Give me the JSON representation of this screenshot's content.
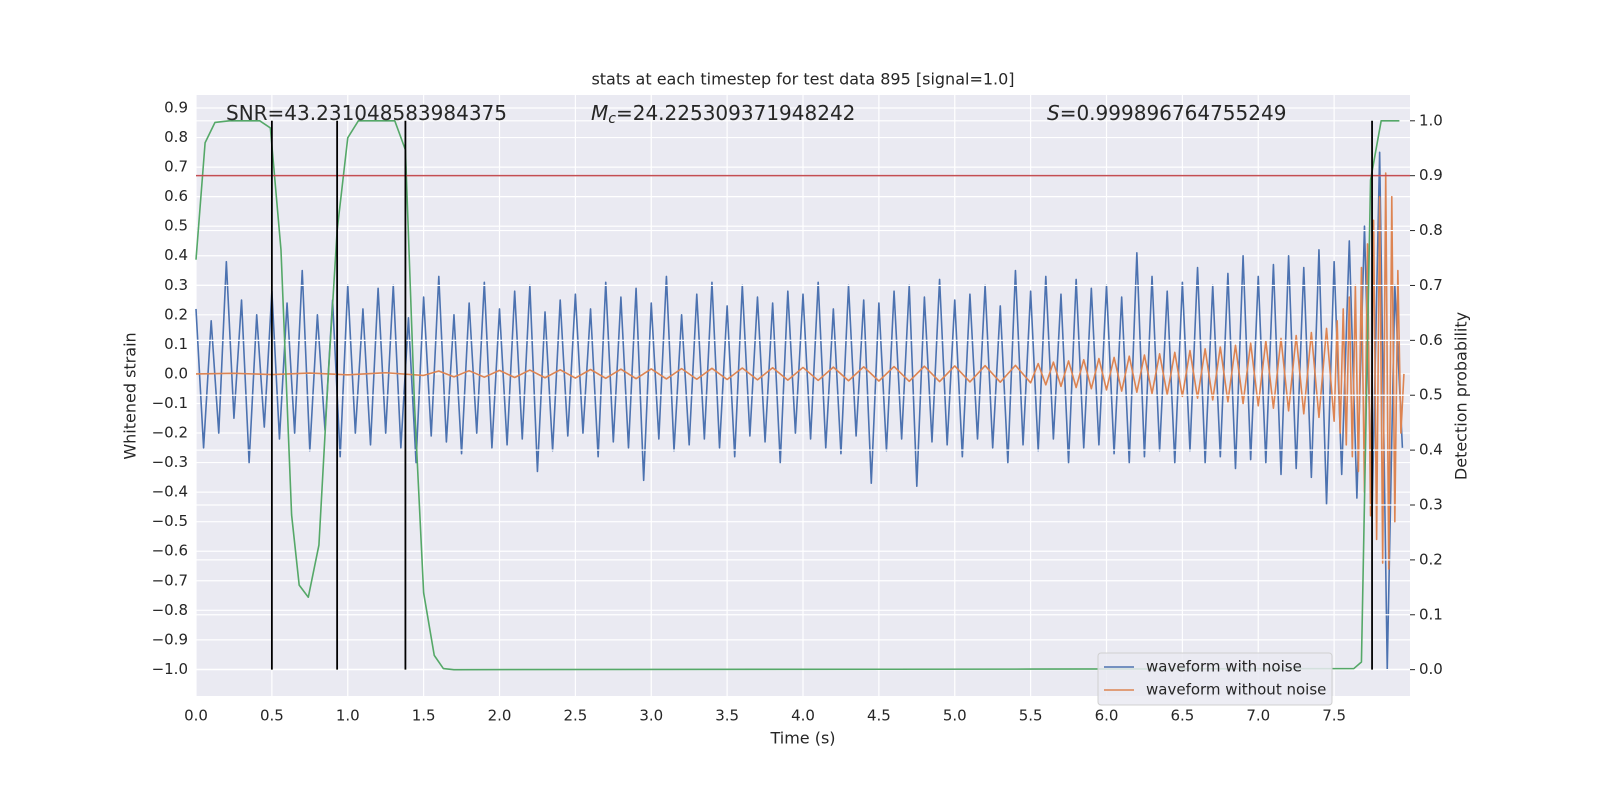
{
  "chart_data": {
    "type": "line",
    "title": "stats at each timestep for test data 895 [signal=1.0]",
    "xlabel": "Time (s)",
    "ylabel": "Whitened strain",
    "y2label": "Detection probability",
    "grid": true,
    "legend": "lower right",
    "xlim": [
      0,
      8.0
    ],
    "ylim": [
      -1.09,
      0.944
    ],
    "y2lim": [
      -0.048,
      1.047
    ],
    "xticks": [
      {
        "value": 0,
        "label": "0.0"
      },
      0.5,
      {
        "value": 1,
        "label": "1.0"
      },
      1.5,
      {
        "value": 2,
        "label": "2.0"
      },
      2.5,
      {
        "value": 3,
        "label": "3.0"
      },
      3.5,
      {
        "value": 4,
        "label": "4.0"
      },
      4.5,
      {
        "value": 5,
        "label": "5.0"
      },
      5.5,
      {
        "value": 6,
        "label": "6.0"
      },
      6.5,
      {
        "value": 7,
        "label": "7.0"
      },
      7.5
    ],
    "yticks": [
      {
        "value": -1,
        "label": "−1.0"
      },
      {
        "value": -0.9,
        "label": "−0.9"
      },
      {
        "value": -0.8,
        "label": "−0.8"
      },
      {
        "value": -0.7,
        "label": "−0.7"
      },
      {
        "value": -0.6,
        "label": "−0.6"
      },
      {
        "value": -0.5,
        "label": "−0.5"
      },
      {
        "value": -0.4,
        "label": "−0.4"
      },
      {
        "value": -0.3,
        "label": "−0.3"
      },
      {
        "value": -0.2,
        "label": "−0.2"
      },
      {
        "value": -0.1,
        "label": "−0.1"
      },
      {
        "value": 0,
        "label": "0.0"
      },
      0.1,
      0.2,
      0.3,
      0.4,
      0.5,
      0.6,
      0.7,
      0.8,
      0.9
    ],
    "y2ticks": [
      {
        "value": 0,
        "label": "0.0"
      },
      0.1,
      0.2,
      0.3,
      0.4,
      0.5,
      0.6,
      0.7,
      0.8,
      0.9,
      {
        "value": 1,
        "label": "1.0"
      }
    ],
    "annotations": [
      {
        "text": "SNR=43.231048583984375"
      },
      {
        "symbol": "M",
        "subscript": "c",
        "text": "=24.225309371948242"
      },
      {
        "symbol": "S",
        "text": "=0.999896764755249"
      }
    ],
    "series": [
      {
        "name": "waveform with noise",
        "color": "#4c72b0",
        "x": [
          0,
          0.05,
          0.1,
          0.15,
          0.2,
          0.25,
          0.3,
          0.35,
          0.4,
          0.45,
          0.5,
          0.55,
          0.6,
          0.65,
          0.7,
          0.75,
          0.8,
          0.85,
          0.9,
          0.95,
          1.0,
          1.05,
          1.1,
          1.15,
          1.2,
          1.25,
          1.3,
          1.35,
          1.4,
          1.45,
          1.5,
          1.55,
          1.6,
          1.65,
          1.7,
          1.75,
          1.8,
          1.85,
          1.9,
          1.95,
          2.0,
          2.05,
          2.1,
          2.15,
          2.2,
          2.25,
          2.3,
          2.35,
          2.4,
          2.45,
          2.5,
          2.55,
          2.6,
          2.65,
          2.7,
          2.75,
          2.8,
          2.85,
          2.9,
          2.95,
          3.0,
          3.05,
          3.1,
          3.15,
          3.2,
          3.25,
          3.3,
          3.35,
          3.4,
          3.45,
          3.5,
          3.55,
          3.6,
          3.65,
          3.7,
          3.75,
          3.8,
          3.85,
          3.9,
          3.95,
          4.0,
          4.05,
          4.1,
          4.15,
          4.2,
          4.25,
          4.3,
          4.35,
          4.4,
          4.45,
          4.5,
          4.55,
          4.6,
          4.65,
          4.7,
          4.75,
          4.8,
          4.85,
          4.9,
          4.95,
          5.0,
          5.05,
          5.1,
          5.15,
          5.2,
          5.25,
          5.3,
          5.35,
          5.4,
          5.45,
          5.5,
          5.55,
          5.6,
          5.65,
          5.7,
          5.75,
          5.8,
          5.85,
          5.9,
          5.95,
          6.0,
          6.05,
          6.1,
          6.15,
          6.2,
          6.25,
          6.3,
          6.35,
          6.4,
          6.45,
          6.5,
          6.55,
          6.6,
          6.65,
          6.7,
          6.75,
          6.8,
          6.85,
          6.9,
          6.95,
          7.0,
          7.05,
          7.1,
          7.15,
          7.2,
          7.25,
          7.3,
          7.35,
          7.4,
          7.45,
          7.5,
          7.55,
          7.6,
          7.65,
          7.7,
          7.75,
          7.8,
          7.85,
          7.9,
          7.95
        ],
        "values": [
          0.22,
          -0.25,
          0.18,
          -0.2,
          0.38,
          -0.15,
          0.25,
          -0.3,
          0.2,
          -0.18,
          0.28,
          -0.22,
          0.24,
          -0.2,
          0.35,
          -0.26,
          0.2,
          -0.19,
          0.25,
          -0.28,
          0.3,
          -0.2,
          0.22,
          -0.24,
          0.29,
          -0.2,
          0.3,
          -0.25,
          0.19,
          -0.3,
          0.26,
          -0.21,
          0.33,
          -0.23,
          0.2,
          -0.27,
          0.24,
          -0.2,
          0.31,
          -0.25,
          0.22,
          -0.24,
          0.28,
          -0.22,
          0.3,
          -0.33,
          0.21,
          -0.26,
          0.25,
          -0.21,
          0.27,
          -0.2,
          0.22,
          -0.28,
          0.31,
          -0.23,
          0.26,
          -0.25,
          0.29,
          -0.36,
          0.24,
          -0.22,
          0.33,
          -0.26,
          0.2,
          -0.24,
          0.27,
          -0.22,
          0.31,
          -0.25,
          0.23,
          -0.28,
          0.3,
          -0.21,
          0.26,
          -0.23,
          0.24,
          -0.3,
          0.28,
          -0.2,
          0.27,
          -0.22,
          0.31,
          -0.25,
          0.22,
          -0.27,
          0.3,
          -0.21,
          0.25,
          -0.37,
          0.24,
          -0.26,
          0.28,
          -0.22,
          0.3,
          -0.38,
          0.26,
          -0.23,
          0.32,
          -0.24,
          0.25,
          -0.28,
          0.27,
          -0.22,
          0.3,
          -0.25,
          0.23,
          -0.3,
          0.35,
          -0.24,
          0.28,
          -0.26,
          0.33,
          -0.22,
          0.27,
          -0.3,
          0.32,
          -0.25,
          0.29,
          -0.24,
          0.3,
          -0.27,
          0.26,
          -0.3,
          0.41,
          -0.28,
          0.33,
          -0.26,
          0.28,
          -0.3,
          0.31,
          -0.26,
          0.36,
          -0.3,
          0.3,
          -0.28,
          0.34,
          -0.32,
          0.4,
          -0.29,
          0.33,
          -0.3,
          0.37,
          -0.34,
          0.4,
          -0.32,
          0.36,
          -0.35,
          0.42,
          -0.44,
          0.38,
          -0.34,
          0.45,
          -0.42,
          0.5,
          -0.48,
          0.75,
          -1.0,
          0.3,
          -0.25
        ]
      },
      {
        "name": "waveform without noise",
        "color": "#dd8452",
        "x": [
          0,
          0.25,
          0.5,
          0.75,
          1.0,
          1.25,
          1.5,
          1.6,
          1.7,
          1.8,
          1.9,
          2.0,
          2.1,
          2.2,
          2.3,
          2.4,
          2.5,
          2.6,
          2.7,
          2.8,
          2.9,
          3.0,
          3.1,
          3.2,
          3.3,
          3.4,
          3.5,
          3.6,
          3.7,
          3.8,
          3.9,
          4.0,
          4.1,
          4.2,
          4.3,
          4.4,
          4.5,
          4.6,
          4.7,
          4.8,
          4.9,
          5.0,
          5.1,
          5.2,
          5.3,
          5.4,
          5.5,
          5.55,
          5.6,
          5.65,
          5.7,
          5.75,
          5.8,
          5.85,
          5.9,
          5.95,
          6.0,
          6.05,
          6.1,
          6.15,
          6.2,
          6.25,
          6.3,
          6.35,
          6.4,
          6.45,
          6.5,
          6.55,
          6.6,
          6.65,
          6.7,
          6.75,
          6.8,
          6.85,
          6.9,
          6.95,
          7.0,
          7.05,
          7.1,
          7.15,
          7.2,
          7.25,
          7.3,
          7.35,
          7.4,
          7.45,
          7.5,
          7.52,
          7.54,
          7.56,
          7.58,
          7.6,
          7.62,
          7.64,
          7.66,
          7.68,
          7.7,
          7.72,
          7.74,
          7.76,
          7.78,
          7.8,
          7.82,
          7.84,
          7.86,
          7.88,
          7.9,
          7.92,
          7.94,
          7.96
        ],
        "values": [
          0,
          0.002,
          -0.002,
          0.003,
          -0.003,
          0.004,
          -0.005,
          0.01,
          -0.01,
          0.011,
          -0.011,
          0.012,
          -0.012,
          0.013,
          -0.013,
          0.014,
          -0.014,
          0.015,
          -0.015,
          0.016,
          -0.016,
          0.017,
          -0.017,
          0.018,
          -0.018,
          0.019,
          -0.019,
          0.02,
          -0.02,
          0.021,
          -0.021,
          0.022,
          -0.022,
          0.023,
          -0.023,
          0.024,
          -0.024,
          0.025,
          -0.025,
          0.026,
          -0.026,
          0.027,
          -0.027,
          0.028,
          -0.028,
          0.029,
          -0.03,
          0.035,
          -0.037,
          0.04,
          -0.042,
          0.044,
          -0.046,
          0.048,
          -0.05,
          0.052,
          -0.054,
          0.056,
          -0.058,
          0.06,
          -0.062,
          0.064,
          -0.066,
          0.068,
          -0.07,
          0.073,
          -0.076,
          0.079,
          -0.082,
          0.085,
          -0.088,
          0.091,
          -0.094,
          0.097,
          -0.1,
          0.104,
          -0.108,
          0.112,
          -0.116,
          0.12,
          -0.125,
          0.13,
          -0.135,
          0.14,
          -0.147,
          0.154,
          -0.16,
          0.18,
          -0.2,
          0.22,
          -0.24,
          0.26,
          -0.28,
          0.3,
          -0.33,
          0.36,
          -0.4,
          0.44,
          -0.48,
          0.52,
          -0.56,
          0.6,
          -0.64,
          0.68,
          -0.66,
          0.6,
          -0.5,
          0.35,
          -0.2,
          0
        ]
      },
      {
        "color": "#55a868",
        "axis": "y2",
        "x": [
          0,
          0.06,
          0.125,
          0.22,
          0.42,
          0.49,
          0.56,
          0.63,
          0.68,
          0.74,
          0.81,
          0.87,
          0.93,
          1.0,
          1.07,
          1.31,
          1.38,
          1.44,
          1.5,
          1.57,
          1.63,
          1.7,
          5.5,
          7.63,
          7.68,
          7.74,
          7.81,
          7.93
        ],
        "values": [
          0.747,
          0.96,
          0.997,
          1.0,
          1.0,
          0.987,
          0.765,
          0.282,
          0.154,
          0.132,
          0.227,
          0.528,
          0.8,
          0.969,
          1.0,
          1.0,
          0.947,
          0.482,
          0.14,
          0.026,
          0.002,
          0,
          0.001,
          0.002,
          0.014,
          0.892,
          1.0,
          1.0
        ]
      }
    ],
    "hline": {
      "color": "#c44e52",
      "axis": "y2",
      "value": 0.9
    },
    "vlines": {
      "color": "#000000",
      "axis": "y2",
      "x": [
        0.5,
        0.93,
        1.38,
        7.75
      ],
      "ymin": 0,
      "ymax": 1.0
    }
  }
}
